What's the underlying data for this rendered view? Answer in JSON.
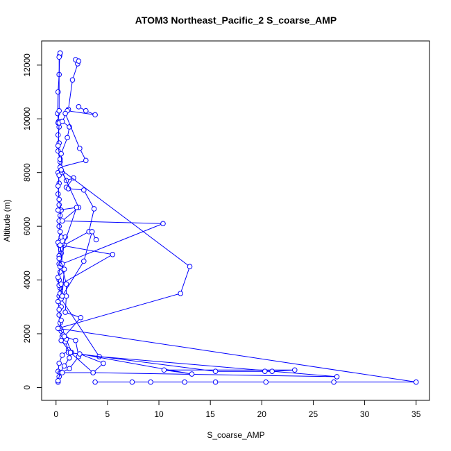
{
  "chart_data": {
    "type": "line",
    "title": "ATOM3 Northeast_Pacific_2 S_coarse_AMP",
    "xlabel": "S_coarse_AMP",
    "ylabel": "Altitude (m)",
    "xlim": [
      -1.4,
      36.3
    ],
    "ylim": [
      -480,
      12900
    ],
    "xticks": [
      0,
      5,
      10,
      15,
      20,
      25,
      30,
      35
    ],
    "yticks": [
      0,
      2000,
      4000,
      6000,
      8000,
      10000,
      12000
    ],
    "grid": false,
    "legend": "none",
    "series_color": "#0000ff",
    "marker": "open-circle",
    "series": [
      {
        "points": [
          [
            0.4,
            12450
          ],
          [
            0.35,
            12350
          ],
          [
            0.3,
            11650
          ],
          [
            0.2,
            11000
          ],
          [
            0.15,
            10200
          ],
          [
            0.25,
            9900
          ],
          [
            0.3,
            9700
          ],
          [
            0.2,
            9400
          ],
          [
            0.3,
            9100
          ],
          [
            0.2,
            8800
          ],
          [
            0.4,
            8400
          ],
          [
            0.2,
            8000
          ],
          [
            0.3,
            7600
          ],
          [
            0.2,
            7200
          ],
          [
            0.3,
            6800
          ],
          [
            0.4,
            6400
          ],
          [
            0.3,
            6000
          ],
          [
            0.5,
            5600
          ],
          [
            0.3,
            5300
          ],
          [
            0.5,
            5000
          ],
          [
            0.3,
            4600
          ],
          [
            0.4,
            4300
          ],
          [
            0.3,
            4000
          ],
          [
            0.4,
            3700
          ],
          [
            0.3,
            3400
          ],
          [
            0.5,
            3000
          ],
          [
            0.3,
            2700
          ],
          [
            0.4,
            2400
          ],
          [
            0.5,
            2100
          ],
          [
            0.6,
            1900
          ],
          [
            0.9,
            1700
          ],
          [
            1.2,
            1400
          ],
          [
            0.6,
            1200
          ],
          [
            0.3,
            900
          ],
          [
            0.2,
            600
          ],
          [
            0.3,
            400
          ],
          [
            0.2,
            200
          ]
        ]
      },
      {
        "points": [
          [
            0.4,
            12450
          ],
          [
            0.3,
            12300
          ],
          [
            0.3,
            10300
          ],
          [
            0.2,
            9850
          ],
          [
            0.3,
            9850
          ],
          [
            0.2,
            9000
          ],
          [
            0.4,
            8500
          ],
          [
            0.3,
            7900
          ],
          [
            0.2,
            7500
          ],
          [
            0.3,
            7000
          ],
          [
            0.5,
            6600
          ],
          [
            0.3,
            6200
          ],
          [
            0.4,
            5800
          ],
          [
            0.2,
            5400
          ],
          [
            0.3,
            4900
          ],
          [
            0.4,
            4500
          ],
          [
            0.2,
            4100
          ],
          [
            0.3,
            3800
          ],
          [
            0.4,
            3500
          ],
          [
            0.2,
            3200
          ],
          [
            0.3,
            2900
          ],
          [
            0.5,
            2500
          ],
          [
            0.4,
            2200
          ],
          [
            0.7,
            1950
          ],
          [
            1.0,
            1800
          ],
          [
            1.5,
            1300
          ],
          [
            1.3,
            1100
          ],
          [
            0.8,
            800
          ],
          [
            0.4,
            550
          ],
          [
            0.2,
            250
          ]
        ]
      },
      {
        "points": [
          [
            1.9,
            12200
          ],
          [
            2.1,
            12050
          ],
          [
            2.2,
            12150
          ],
          [
            1.6,
            11450
          ],
          [
            1.2,
            10350
          ],
          [
            0.6,
            9900
          ],
          [
            1.3,
            9700
          ],
          [
            1.1,
            9300
          ],
          [
            0.5,
            8700
          ],
          [
            0.6,
            8000
          ],
          [
            1.0,
            7700
          ],
          [
            1.7,
            7800
          ],
          [
            1.0,
            7450
          ],
          [
            1.2,
            7400
          ],
          [
            2.7,
            7350
          ],
          [
            3.7,
            6650
          ],
          [
            3.2,
            5800
          ],
          [
            0.8,
            5300
          ],
          [
            0.9,
            5600
          ],
          [
            0.5,
            4600
          ],
          [
            1.0,
            3850
          ],
          [
            1.0,
            3400
          ],
          [
            0.9,
            2800
          ],
          [
            2.4,
            2600
          ],
          [
            0.8,
            1900
          ],
          [
            1.9,
            1750
          ],
          [
            2.2,
            1150
          ],
          [
            1.3,
            700
          ],
          [
            0.5,
            550
          ]
        ]
      },
      {
        "points": [
          [
            2.2,
            10450
          ],
          [
            2.9,
            10300
          ],
          [
            3.8,
            10150
          ],
          [
            1.1,
            10300
          ],
          [
            0.9,
            10200
          ],
          [
            2.3,
            8900
          ],
          [
            2.9,
            8450
          ],
          [
            0.4,
            8200
          ],
          [
            2.2,
            6700
          ],
          [
            0.6,
            6200
          ],
          [
            10.4,
            6100
          ],
          [
            0.6,
            4600
          ],
          [
            0.4,
            5300
          ],
          [
            5.5,
            4950
          ],
          [
            0.5,
            3850
          ],
          [
            0.5,
            3300
          ],
          [
            4.2,
            1150
          ],
          [
            27.3,
            400
          ],
          [
            3.6,
            550
          ],
          [
            0.6,
            550
          ]
        ]
      },
      {
        "points": [
          [
            3.9,
            5500
          ],
          [
            3.5,
            5800
          ],
          [
            2.7,
            4700
          ],
          [
            0.6,
            3400
          ],
          [
            0.8,
            4400
          ],
          [
            0.3,
            4800
          ],
          [
            2.0,
            6700
          ],
          [
            0.2,
            6600
          ]
        ]
      },
      {
        "points": [
          [
            0.5,
            8100
          ],
          [
            13.0,
            4500
          ],
          [
            12.1,
            3500
          ],
          [
            0.2,
            2200
          ],
          [
            35.0,
            200
          ],
          [
            20.4,
            200
          ],
          [
            27.0,
            200
          ],
          [
            15.5,
            200
          ],
          [
            12.5,
            200
          ],
          [
            3.8,
            200
          ],
          [
            7.4,
            200
          ],
          [
            9.2,
            200
          ]
        ]
      },
      {
        "points": [
          [
            1.2,
            1300
          ],
          [
            15.5,
            600
          ],
          [
            20.3,
            600
          ],
          [
            21.0,
            600
          ],
          [
            23.2,
            650
          ],
          [
            10.5,
            650
          ],
          [
            13.2,
            500
          ],
          [
            2.3,
            1250
          ],
          [
            4.6,
            900
          ],
          [
            3.6,
            550
          ],
          [
            1.4,
            1300
          ],
          [
            0.5,
            1750
          ]
        ]
      }
    ]
  }
}
